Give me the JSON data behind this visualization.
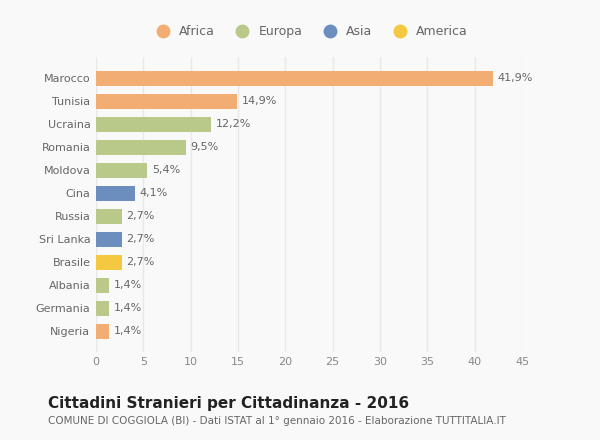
{
  "countries": [
    "Marocco",
    "Tunisia",
    "Ucraina",
    "Romania",
    "Moldova",
    "Cina",
    "Russia",
    "Sri Lanka",
    "Brasile",
    "Albania",
    "Germania",
    "Nigeria"
  ],
  "values": [
    41.9,
    14.9,
    12.2,
    9.5,
    5.4,
    4.1,
    2.7,
    2.7,
    2.7,
    1.4,
    1.4,
    1.4
  ],
  "labels": [
    "41,9%",
    "14,9%",
    "12,2%",
    "9,5%",
    "5,4%",
    "4,1%",
    "2,7%",
    "2,7%",
    "2,7%",
    "1,4%",
    "1,4%",
    "1,4%"
  ],
  "colors": [
    "#F2AE72",
    "#F2AE72",
    "#B8C98A",
    "#B8C98A",
    "#B8C98A",
    "#6B8EBF",
    "#B8C98A",
    "#6B8EBF",
    "#F5C842",
    "#B8C98A",
    "#B8C98A",
    "#F2AE72"
  ],
  "legend_labels": [
    "Africa",
    "Europa",
    "Asia",
    "America"
  ],
  "legend_colors": [
    "#F2AE72",
    "#B8C98A",
    "#6B8EBF",
    "#F5C842"
  ],
  "xlim": [
    0,
    45
  ],
  "xticks": [
    0,
    5,
    10,
    15,
    20,
    25,
    30,
    35,
    40,
    45
  ],
  "title": "Cittadini Stranieri per Cittadinanza - 2016",
  "subtitle": "COMUNE DI COGGIOLA (BI) - Dati ISTAT al 1° gennaio 2016 - Elaborazione TUTTITALIA.IT",
  "background_color": "#f9f9f9",
  "grid_color": "#e8e8e8",
  "bar_height": 0.65,
  "title_fontsize": 11,
  "subtitle_fontsize": 7.5,
  "tick_fontsize": 8,
  "label_fontsize": 8
}
